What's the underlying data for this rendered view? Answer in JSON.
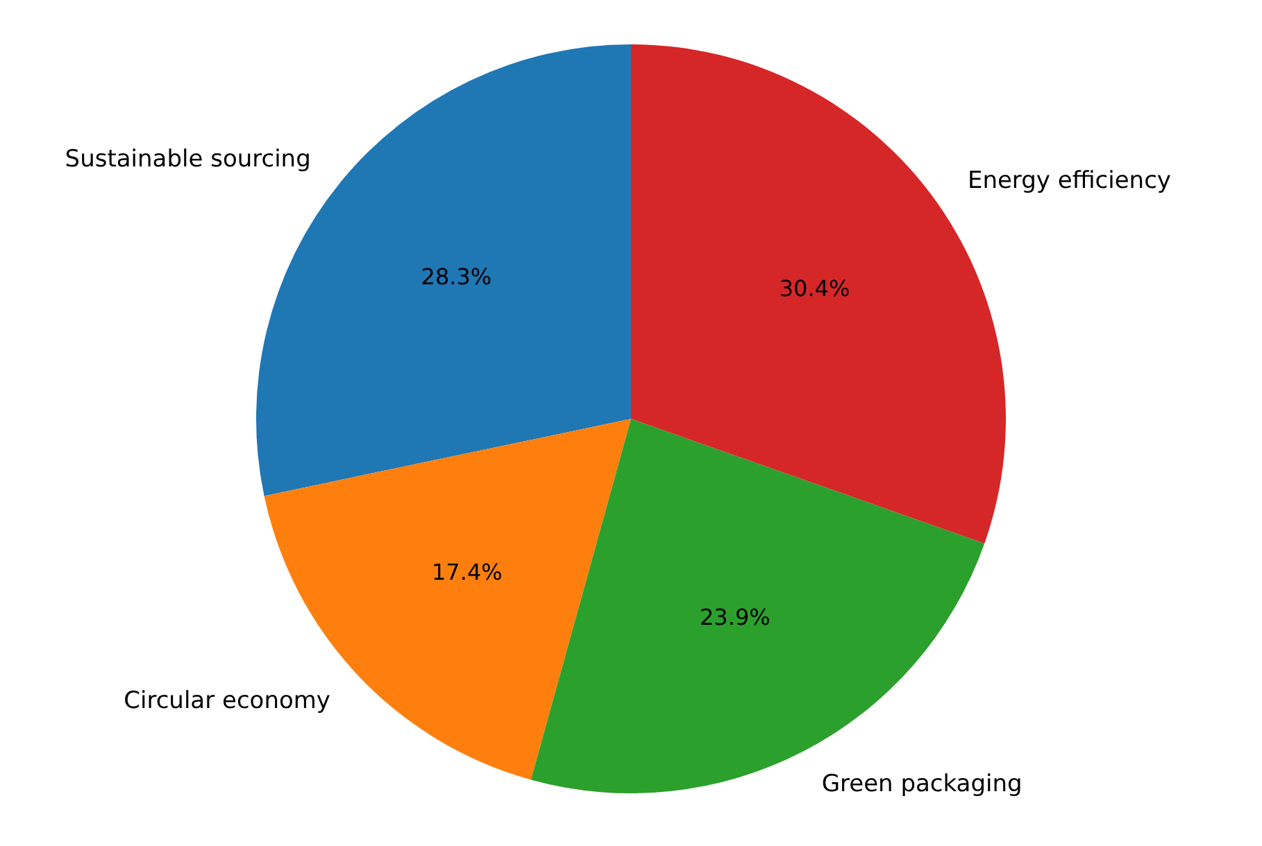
{
  "chart_data": {
    "type": "pie",
    "categories": [
      "Sustainable sourcing",
      "Circular economy",
      "Green packaging",
      "Energy efficiency"
    ],
    "values": [
      28.3,
      17.4,
      23.9,
      30.4
    ],
    "colors": [
      "#1f77b4",
      "#ff7f0e",
      "#2ca02c",
      "#d62728"
    ],
    "value_labels": [
      "28.3%",
      "17.4%",
      "23.9%",
      "30.4%"
    ],
    "legend": false
  }
}
